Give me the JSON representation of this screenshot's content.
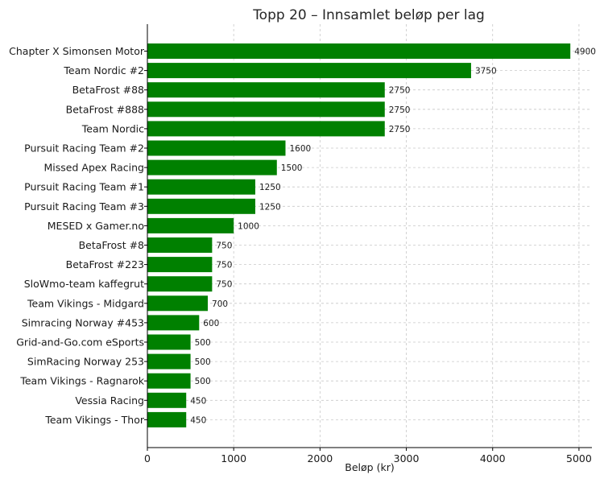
{
  "chart_data": {
    "type": "bar",
    "orientation": "horizontal",
    "title": "Topp 20 – Innsamlet beløp per lag",
    "xlabel": "Beløp (kr)",
    "ylabel": "",
    "xlim": [
      0,
      5150
    ],
    "xticks": [
      0,
      1000,
      2000,
      3000,
      4000,
      5000
    ],
    "grid": true,
    "bar_color": "#008000",
    "categories": [
      "Chapter X Simonsen Motor",
      "Team Nordic #2",
      "BetaFrost #88",
      "BetaFrost #888",
      "Team Nordic",
      "Pursuit Racing Team #2",
      "Missed Apex Racing",
      "Pursuit Racing Team #1",
      "Pursuit Racing Team #3",
      "MESED x Gamer.no",
      "BetaFrost #8",
      "BetaFrost #223",
      "SloWmo-team kaffegrut",
      "Team Vikings - Midgard",
      "Simracing Norway #453",
      "Grid-and-Go.com eSports",
      "SimRacing Norway 253",
      "Team Vikings - Ragnarok",
      "Vessia Racing",
      "Team Vikings - Thor"
    ],
    "values": [
      4900,
      3750,
      2750,
      2750,
      2750,
      1600,
      1500,
      1250,
      1250,
      1000,
      750,
      750,
      750,
      700,
      600,
      500,
      500,
      500,
      450,
      450
    ]
  }
}
